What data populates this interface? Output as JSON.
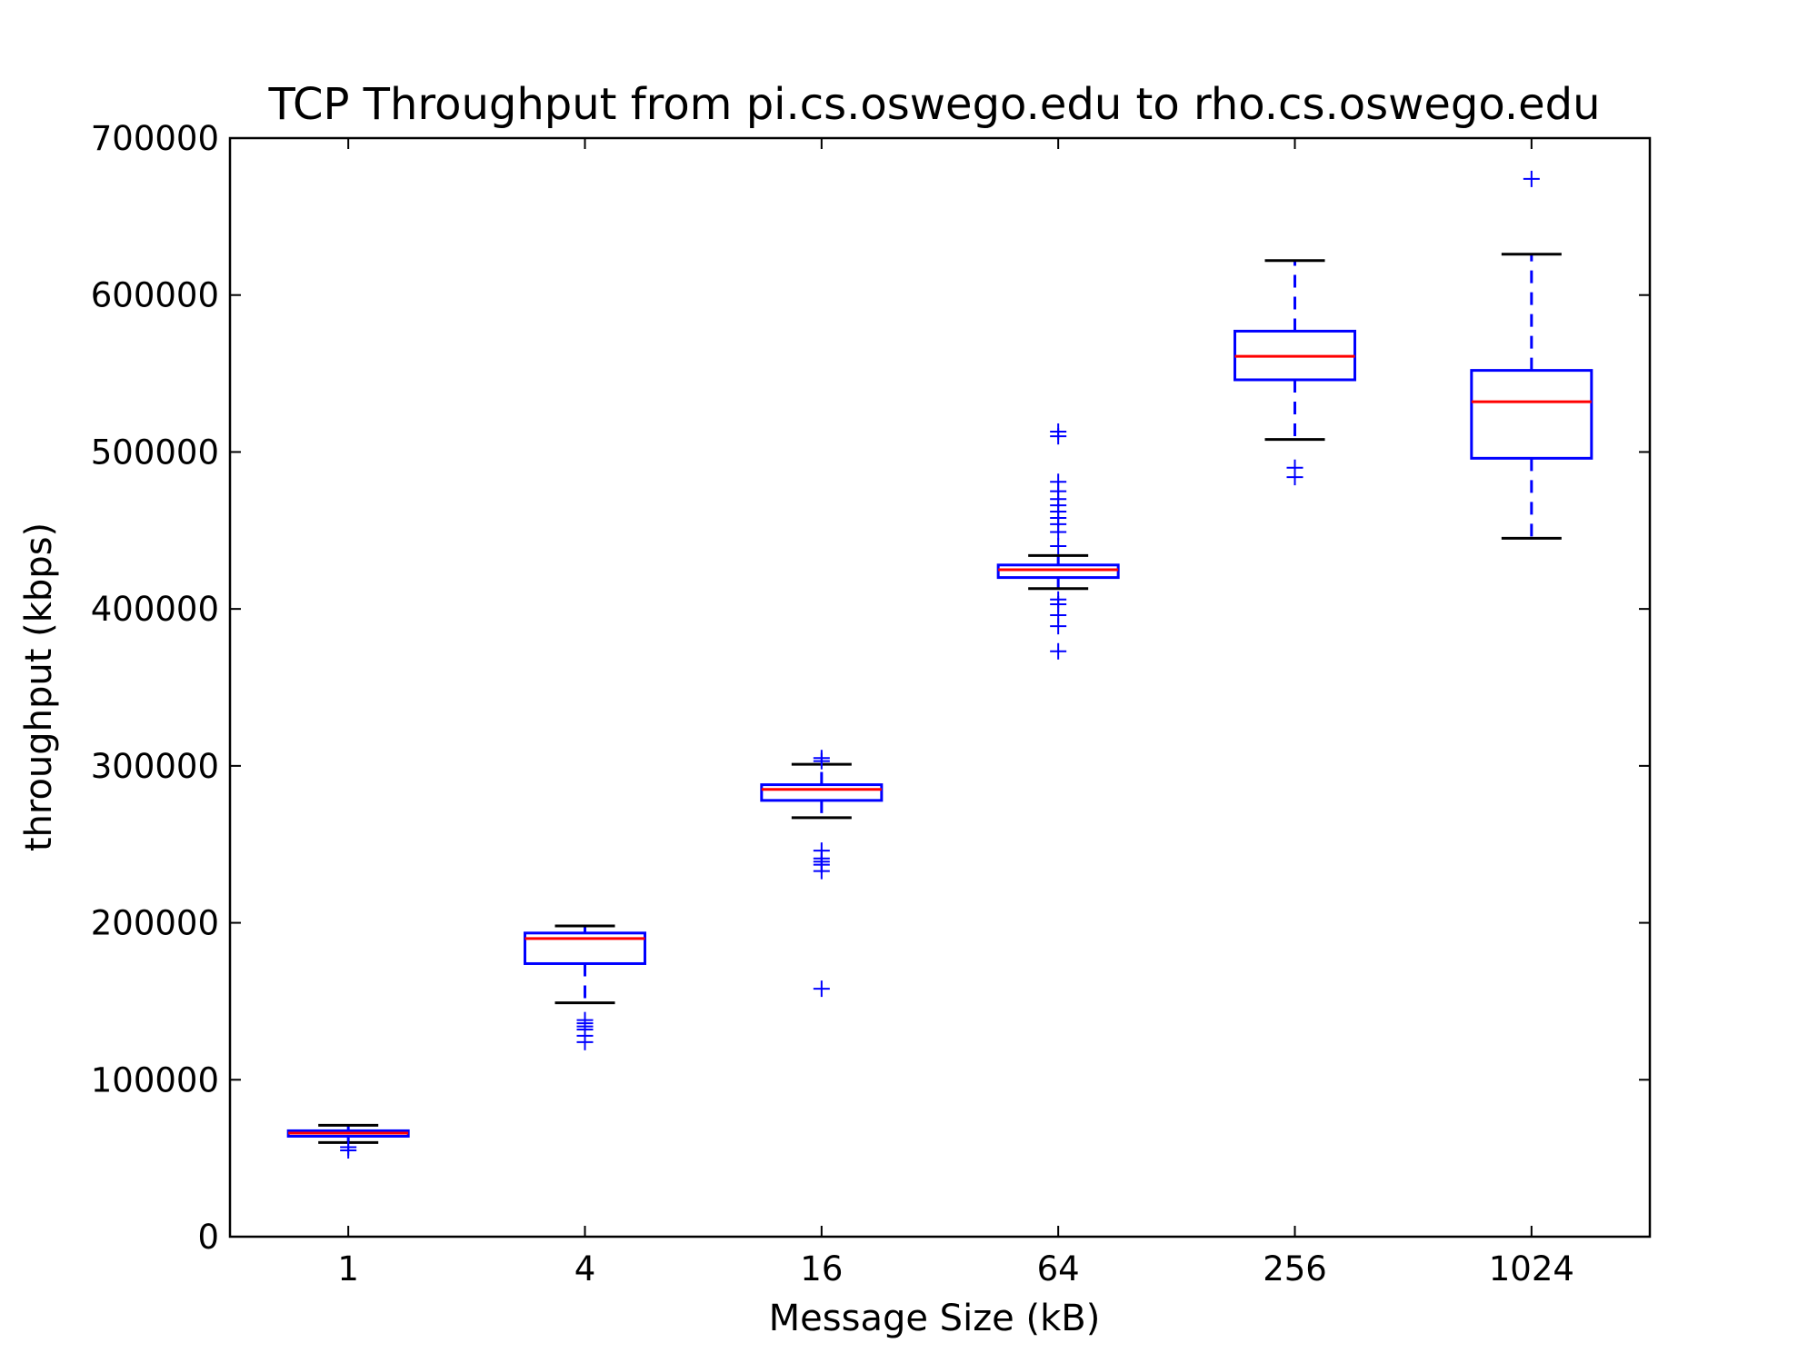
{
  "chart_data": {
    "type": "box",
    "title": "TCP Throughput from pi.cs.oswego.edu to rho.cs.oswego.edu",
    "xlabel": "Message Size (kB)",
    "ylabel": "throughput (kbps)",
    "categories": [
      "1",
      "4",
      "16",
      "64",
      "256",
      "1024"
    ],
    "ylim": [
      0,
      700000
    ],
    "yticks": [
      0,
      100000,
      200000,
      300000,
      400000,
      500000,
      600000,
      700000
    ],
    "ytick_labels": [
      "0",
      "100000",
      "200000",
      "300000",
      "400000",
      "500000",
      "600000",
      "700000"
    ],
    "grid": false,
    "colors": {
      "box": "#0000ff",
      "median": "#ff0000",
      "whisker_cap": "#000000",
      "flier": "#0000ff",
      "axes": "#000000"
    },
    "boxes": [
      {
        "category": "1",
        "whisker_low": 60000,
        "q1": 64000,
        "median": 66000,
        "q3": 67500,
        "whisker_high": 71000,
        "fliers": [
          57000,
          55000
        ]
      },
      {
        "category": "4",
        "whisker_low": 149000,
        "q1": 174000,
        "median": 190000,
        "q3": 193500,
        "whisker_high": 198000,
        "fliers": [
          138000,
          136000,
          134000,
          132000,
          128000,
          124000
        ]
      },
      {
        "category": "16",
        "whisker_low": 267000,
        "q1": 278000,
        "median": 285000,
        "q3": 288000,
        "whisker_high": 301000,
        "fliers": [
          305000,
          303000,
          246000,
          241000,
          239000,
          237000,
          233000,
          158000
        ]
      },
      {
        "category": "64",
        "whisker_low": 413000,
        "q1": 420000,
        "median": 425000,
        "q3": 428000,
        "whisker_high": 434000,
        "fliers": [
          513000,
          510000,
          481000,
          475000,
          470000,
          466000,
          462000,
          458000,
          454000,
          449000,
          440000,
          406000,
          403000,
          396000,
          389000,
          373000
        ]
      },
      {
        "category": "256",
        "whisker_low": 508000,
        "q1": 546000,
        "median": 561000,
        "q3": 577000,
        "whisker_high": 622000,
        "fliers": [
          490000,
          484000
        ]
      },
      {
        "category": "1024",
        "whisker_low": 445000,
        "q1": 496000,
        "median": 532000,
        "q3": 552000,
        "whisker_high": 626000,
        "fliers": [
          674000
        ]
      }
    ]
  }
}
